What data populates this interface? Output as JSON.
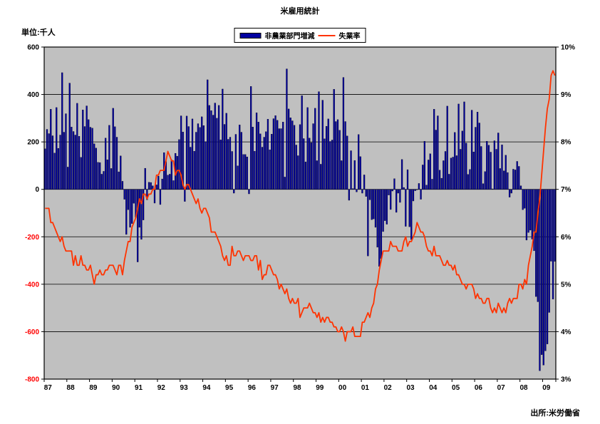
{
  "title": "米雇用統計",
  "unit_label": "単位:千人",
  "source_label": "出所:米労働省",
  "legend": {
    "bars": "非農業部門増減",
    "line": "失業率"
  },
  "colors": {
    "bar": "#0000A0",
    "bar_edge": "#000000",
    "line": "#FF3300",
    "plot_bg": "#C0C0C0",
    "grid": "#000000",
    "negative_tick": "#FF0000"
  },
  "chart_data": {
    "type": "combo_bar_line",
    "title": "米雇用統計",
    "x_start": "1987-01",
    "x_tick_labels": [
      "87",
      "88",
      "89",
      "90",
      "91",
      "92",
      "93",
      "94",
      "95",
      "96",
      "97",
      "98",
      "99",
      "00",
      "01",
      "02",
      "03",
      "04",
      "05",
      "06",
      "07",
      "08",
      "09"
    ],
    "points_per_x_tick": 12,
    "left_axis": {
      "label": "単位:千人",
      "min": -800,
      "max": 600,
      "step": 200
    },
    "right_axis": {
      "label": "失業率",
      "min": 3,
      "max": 10,
      "step": 1,
      "suffix": "%"
    },
    "grid": "horizontal",
    "legend_position": "top-center",
    "series": [
      {
        "name": "非農業部門増減",
        "type": "bar",
        "axis": "left",
        "values": [
          171,
          253,
          235,
          338,
          226,
          153,
          345,
          173,
          229,
          492,
          241,
          319,
          94,
          448,
          263,
          244,
          229,
          363,
          224,
          135,
          335,
          265,
          352,
          294,
          262,
          258,
          192,
          174,
          114,
          113,
          64,
          76,
          216,
          125,
          270,
          88,
          342,
          264,
          220,
          74,
          141,
          34,
          -42,
          -190,
          -86,
          -160,
          -144,
          -59,
          -119,
          -306,
          -160,
          -211,
          -129,
          89,
          -44,
          30,
          29,
          15,
          -58,
          19,
          56,
          -64,
          44,
          155,
          117,
          60,
          64,
          124,
          37,
          152,
          140,
          210,
          310,
          242,
          -51,
          309,
          265,
          178,
          297,
          161,
          241,
          277,
          261,
          306,
          269,
          201,
          462,
          354,
          332,
          313,
          364,
          300,
          354,
          209,
          423,
          274,
          321,
          211,
          220,
          160,
          -16,
          232,
          99,
          272,
          241,
          147,
          147,
          137,
          -19,
          434,
          263,
          161,
          323,
          284,
          234,
          178,
          220,
          243,
          296,
          167,
          233,
          298,
          311,
          291,
          256,
          256,
          284,
          52,
          508,
          339,
          302,
          289,
          270,
          187,
          142,
          273,
          395,
          214,
          116,
          345,
          216,
          197,
          277,
          342,
          121,
          412,
          106,
          376,
          213,
          266,
          297,
          202,
          208,
          422,
          286,
          294,
          249,
          121,
          472,
          286,
          225,
          -46,
          163,
          3,
          122,
          -11,
          231,
          138,
          -16,
          61,
          -30,
          -281,
          -44,
          -128,
          -125,
          -160,
          -244,
          -325,
          -292,
          -178,
          -132,
          -147,
          -24,
          -85,
          -7,
          45,
          -97,
          -16,
          -55,
          126,
          8,
          -156,
          83,
          -158,
          -212,
          -49,
          -6,
          -2,
          25,
          -42,
          103,
          203,
          18,
          124,
          150,
          43,
          338,
          250,
          310,
          81,
          47,
          121,
          160,
          351,
          64,
          132,
          136,
          240,
          142,
          360,
          169,
          246,
          369,
          195,
          63,
          84,
          334,
          158,
          262,
          326,
          280,
          181,
          24,
          75,
          203,
          186,
          157,
          2,
          205,
          169,
          238,
          88,
          188,
          78,
          144,
          71,
          -33,
          -16,
          85,
          82,
          118,
          97,
          15,
          -86,
          -80,
          -214,
          -182,
          -172,
          -210,
          -259,
          -452,
          -474,
          -765,
          -697,
          -741,
          -681,
          -652,
          -519,
          -303,
          -463,
          -304
        ]
      },
      {
        "name": "失業率",
        "type": "line",
        "axis": "right",
        "values": [
          6.6,
          6.6,
          6.6,
          6.3,
          6.3,
          6.2,
          6.1,
          6.0,
          5.9,
          6.0,
          5.8,
          5.7,
          5.7,
          5.7,
          5.7,
          5.4,
          5.6,
          5.4,
          5.4,
          5.6,
          5.4,
          5.4,
          5.3,
          5.3,
          5.4,
          5.2,
          5.0,
          5.2,
          5.2,
          5.3,
          5.2,
          5.2,
          5.3,
          5.3,
          5.4,
          5.4,
          5.4,
          5.3,
          5.2,
          5.4,
          5.4,
          5.2,
          5.5,
          5.7,
          5.9,
          5.9,
          6.2,
          6.3,
          6.4,
          6.6,
          6.8,
          6.7,
          6.9,
          6.9,
          6.8,
          6.9,
          6.9,
          7.0,
          7.0,
          7.3,
          7.3,
          7.4,
          7.4,
          7.4,
          7.6,
          7.8,
          7.7,
          7.6,
          7.6,
          7.3,
          7.4,
          7.4,
          7.3,
          7.1,
          7.0,
          7.1,
          7.1,
          7.0,
          6.9,
          6.8,
          6.7,
          6.8,
          6.6,
          6.5,
          6.6,
          6.6,
          6.5,
          6.4,
          6.1,
          6.1,
          6.1,
          6.0,
          5.9,
          5.8,
          5.6,
          5.5,
          5.6,
          5.4,
          5.4,
          5.8,
          5.6,
          5.6,
          5.7,
          5.7,
          5.6,
          5.5,
          5.6,
          5.6,
          5.6,
          5.5,
          5.5,
          5.6,
          5.6,
          5.3,
          5.5,
          5.1,
          5.2,
          5.2,
          5.4,
          5.4,
          5.3,
          5.2,
          5.2,
          5.1,
          4.9,
          5.0,
          4.9,
          4.8,
          4.9,
          4.7,
          4.6,
          4.7,
          4.6,
          4.6,
          4.7,
          4.3,
          4.4,
          4.5,
          4.5,
          4.5,
          4.6,
          4.5,
          4.4,
          4.4,
          4.3,
          4.4,
          4.2,
          4.3,
          4.2,
          4.3,
          4.3,
          4.2,
          4.2,
          4.1,
          4.1,
          4.0,
          4.0,
          4.1,
          4.0,
          3.8,
          4.0,
          4.0,
          4.0,
          4.1,
          3.9,
          3.9,
          3.9,
          3.9,
          4.2,
          4.2,
          4.3,
          4.4,
          4.3,
          4.5,
          4.6,
          4.9,
          5.0,
          5.3,
          5.5,
          5.7,
          5.7,
          5.7,
          5.7,
          5.9,
          5.8,
          5.8,
          5.8,
          5.7,
          5.7,
          5.7,
          5.9,
          6.0,
          5.8,
          5.9,
          5.9,
          6.0,
          6.1,
          6.3,
          6.2,
          6.1,
          6.1,
          6.0,
          5.8,
          5.7,
          5.7,
          5.6,
          5.8,
          5.6,
          5.6,
          5.6,
          5.5,
          5.4,
          5.4,
          5.5,
          5.4,
          5.4,
          5.3,
          5.4,
          5.2,
          5.2,
          5.1,
          5.0,
          5.0,
          4.9,
          5.0,
          5.0,
          5.0,
          4.9,
          4.7,
          4.8,
          4.7,
          4.7,
          4.6,
          4.6,
          4.7,
          4.7,
          4.5,
          4.4,
          4.5,
          4.4,
          4.6,
          4.5,
          4.4,
          4.5,
          4.4,
          4.6,
          4.7,
          4.6,
          4.7,
          4.7,
          4.7,
          5.0,
          5.0,
          4.9,
          5.1,
          5.0,
          5.4,
          5.6,
          5.8,
          6.1,
          6.1,
          6.5,
          6.8,
          7.3,
          7.8,
          8.3,
          8.7,
          8.9,
          9.4,
          9.5,
          9.4
        ]
      }
    ]
  }
}
